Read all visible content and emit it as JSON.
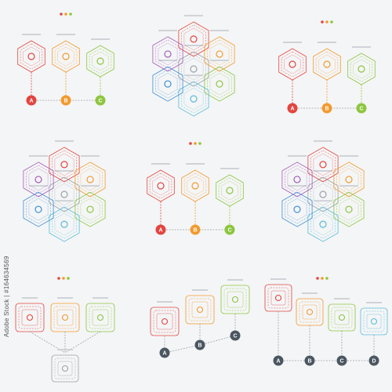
{
  "panels": [
    {
      "nodes": [
        "A",
        "B",
        "C"
      ]
    },
    {
      "nodes": [
        "A",
        "B",
        "C"
      ]
    },
    {
      "nodes": [
        "A",
        "B",
        "C"
      ]
    },
    {
      "nodes": [
        "A",
        "B",
        "C"
      ]
    },
    {
      "nodes": [
        "A",
        "B",
        "C",
        "D"
      ]
    }
  ],
  "watermark": "Adobe Stock | #164634569"
}
